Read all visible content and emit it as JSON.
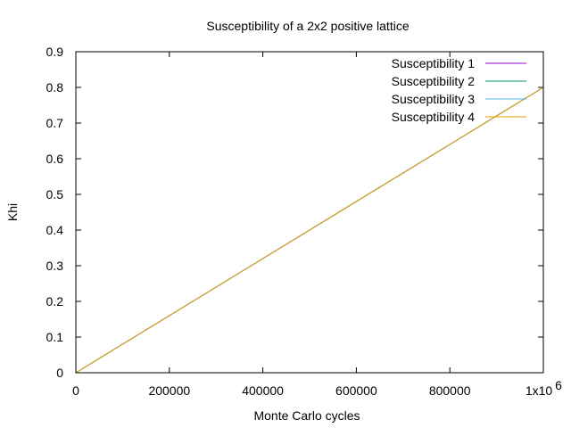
{
  "chart_data": {
    "type": "line",
    "title": "Susceptibility of a 2x2 positive lattice",
    "xlabel": "Monte Carlo cycles",
    "ylabel": "Khi",
    "xlim": [
      0,
      1000000
    ],
    "ylim": [
      0,
      0.9
    ],
    "x_ticks": [
      0,
      200000,
      400000,
      600000,
      800000,
      1000000
    ],
    "x_tick_labels": [
      "0",
      "200000",
      "400000",
      "600000",
      "800000",
      "1x10"
    ],
    "x_tick_exponent": "6",
    "y_ticks": [
      0,
      0.1,
      0.2,
      0.3,
      0.4,
      0.5,
      0.6,
      0.7,
      0.8,
      0.9
    ],
    "y_tick_labels": [
      "0",
      "0.1",
      "0.2",
      "0.3",
      "0.4",
      "0.5",
      "0.6",
      "0.7",
      "0.8",
      "0.9"
    ],
    "grid": false,
    "legend_position": "top-right",
    "series": [
      {
        "name": "Susceptibility 1",
        "color": "#9400d3",
        "x": [
          0,
          1000000
        ],
        "y": [
          0,
          0.8
        ]
      },
      {
        "name": "Susceptibility 2",
        "color": "#009e73",
        "x": [
          0,
          1000000
        ],
        "y": [
          0,
          0.8
        ]
      },
      {
        "name": "Susceptibility 3",
        "color": "#56b4e9",
        "x": [
          0,
          1000000
        ],
        "y": [
          0,
          0.8
        ]
      },
      {
        "name": "Susceptibility 4",
        "color": "#e69f00",
        "x": [
          0,
          1000000
        ],
        "y": [
          0,
          0.8
        ]
      }
    ]
  }
}
